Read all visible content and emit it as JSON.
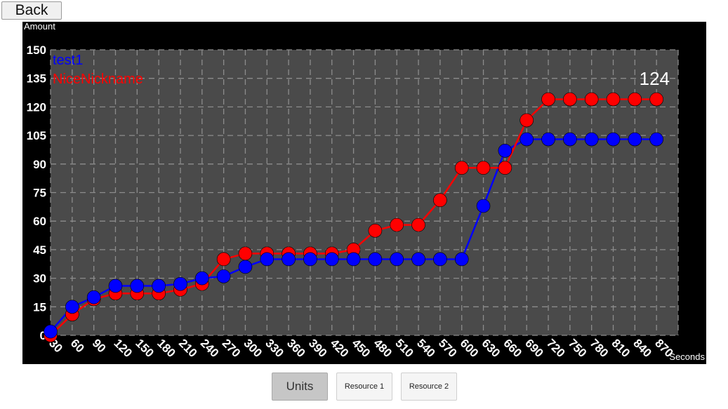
{
  "back_label": "Back",
  "tabs": [
    {
      "label": "Units",
      "selected": true
    },
    {
      "label": "Resource 1",
      "selected": false
    },
    {
      "label": "Resource 2",
      "selected": false
    }
  ],
  "colors": {
    "panel": "#000000",
    "plot_bg": "#4a4a4a",
    "grid": "#8c8c8c",
    "series_test1": "#0000ff",
    "series_nice": "#ff0000"
  },
  "chart_data": {
    "type": "line",
    "title": "",
    "xlabel": "Seconds",
    "ylabel": "Amount",
    "xlim": [
      30,
      900
    ],
    "ylim": [
      0,
      150
    ],
    "x_ticks": [
      30,
      60,
      90,
      120,
      150,
      180,
      210,
      240,
      270,
      300,
      330,
      360,
      390,
      420,
      450,
      480,
      510,
      540,
      570,
      600,
      630,
      660,
      690,
      720,
      750,
      780,
      810,
      840,
      870
    ],
    "y_ticks": [
      0,
      15,
      30,
      45,
      60,
      75,
      90,
      105,
      120,
      135,
      150
    ],
    "grid": true,
    "legend_position": "top-left",
    "annotation": "124",
    "series": [
      {
        "name": "test1",
        "color": "#0000ff",
        "x": [
          30,
          60,
          90,
          120,
          150,
          180,
          210,
          240,
          270,
          300,
          330,
          360,
          390,
          420,
          450,
          480,
          510,
          540,
          570,
          600,
          630,
          660,
          690,
          720,
          750,
          780,
          810,
          840,
          870
        ],
        "values": [
          2,
          15,
          20,
          26,
          26,
          26,
          27,
          30,
          31,
          36,
          40,
          40,
          40,
          40,
          40,
          40,
          40,
          40,
          40,
          40,
          68,
          97,
          103,
          103,
          103,
          103,
          103,
          103,
          103
        ]
      },
      {
        "name": "NiceNickname",
        "color": "#ff0000",
        "x": [
          30,
          60,
          90,
          120,
          150,
          180,
          210,
          240,
          270,
          300,
          330,
          360,
          390,
          420,
          450,
          480,
          510,
          540,
          570,
          600,
          630,
          660,
          690,
          720,
          750,
          780,
          810,
          840,
          870
        ],
        "values": [
          0,
          11,
          19,
          22,
          22,
          22,
          24,
          27,
          40,
          43,
          43,
          43,
          43,
          43,
          45,
          55,
          58,
          58,
          71,
          88,
          88,
          88,
          113,
          124,
          124,
          124,
          124,
          124,
          124
        ]
      }
    ]
  }
}
